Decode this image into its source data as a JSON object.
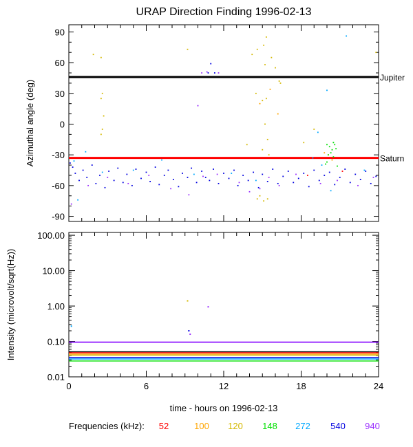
{
  "title": "URAP Direction Finding  1996-02-13",
  "xlabel": "time - hours on 1996-02-13",
  "legend_label": "Frequencies (kHz):",
  "frequencies": [
    {
      "label": "52",
      "color": "#ff0000"
    },
    {
      "label": "100",
      "color": "#ffa500"
    },
    {
      "label": "120",
      "color": "#d4b800"
    },
    {
      "label": "148",
      "color": "#00e000"
    },
    {
      "label": "272",
      "color": "#00a8ff"
    },
    {
      "label": "540",
      "color": "#0000e0"
    },
    {
      "label": "940",
      "color": "#9b30ff"
    }
  ],
  "chart_data": [
    {
      "type": "scatter",
      "title": "URAP Direction Finding  1996-02-13",
      "ylabel": "Azimuthal angle (deg)",
      "xlim": [
        0,
        24
      ],
      "ylim": [
        -95,
        97
      ],
      "yticks": [
        "90",
        "60",
        "30",
        "0",
        "-30",
        "-60",
        "-90"
      ],
      "xticks": [
        "0",
        "6",
        "12",
        "18",
        "24"
      ],
      "reference_lines": [
        {
          "label": "Jupiter",
          "y": 46,
          "color": "#000000"
        },
        {
          "label": "Saturn",
          "y": -33,
          "color": "#ff0000"
        }
      ],
      "series": [
        {
          "color": "#0000e0",
          "points": [
            [
              0.1,
              -38
            ],
            [
              0.3,
              -42
            ],
            [
              0.5,
              -48
            ],
            [
              0.8,
              -55
            ],
            [
              1.1,
              -45
            ],
            [
              1.4,
              -52
            ],
            [
              1.8,
              -40
            ],
            [
              2.1,
              -58
            ],
            [
              2.4,
              -50
            ],
            [
              2.8,
              -62
            ],
            [
              3.1,
              -46
            ],
            [
              3.5,
              -55
            ],
            [
              3.8,
              -43
            ],
            [
              4.2,
              -57
            ],
            [
              4.5,
              -49
            ],
            [
              4.9,
              -60
            ],
            [
              5.2,
              -44
            ],
            [
              5.6,
              -53
            ],
            [
              6.0,
              -47
            ],
            [
              6.3,
              -56
            ],
            [
              6.7,
              -42
            ],
            [
              7.0,
              -59
            ],
            [
              7.4,
              -50
            ],
            [
              7.7,
              -45
            ],
            [
              8.1,
              -54
            ],
            [
              8.5,
              -61
            ],
            [
              8.8,
              -48
            ],
            [
              9.2,
              -52
            ],
            [
              9.5,
              -43
            ],
            [
              9.9,
              -57
            ],
            [
              10.3,
              -46
            ],
            [
              10.6,
              -52
            ],
            [
              10.9,
              -55
            ],
            [
              11.2,
              -44
            ],
            [
              11.6,
              -58
            ],
            [
              12.0,
              -48
            ],
            [
              12.4,
              -53
            ],
            [
              12.8,
              -45
            ],
            [
              13.1,
              -60
            ],
            [
              13.5,
              -50
            ],
            [
              13.9,
              -55
            ],
            [
              14.3,
              -47
            ],
            [
              14.7,
              -62
            ],
            [
              15.0,
              -49
            ],
            [
              15.4,
              -56
            ],
            [
              15.8,
              -44
            ],
            [
              16.2,
              -58
            ],
            [
              16.6,
              -51
            ],
            [
              17.0,
              -46
            ],
            [
              17.4,
              -57
            ],
            [
              17.8,
              -53
            ],
            [
              18.2,
              -48
            ],
            [
              18.6,
              -61
            ],
            [
              19.0,
              -45
            ],
            [
              19.4,
              -55
            ],
            [
              19.8,
              -50
            ],
            [
              20.2,
              -47
            ],
            [
              20.6,
              -59
            ],
            [
              21.0,
              -52
            ],
            [
              21.4,
              -44
            ],
            [
              21.8,
              -57
            ],
            [
              22.2,
              -49
            ],
            [
              22.6,
              -54
            ],
            [
              23.0,
              -46
            ],
            [
              23.4,
              -58
            ],
            [
              23.8,
              -51
            ],
            [
              11.0,
              59
            ],
            [
              10.8,
              50
            ],
            [
              11.3,
              50
            ]
          ]
        },
        {
          "color": "#9b30ff",
          "points": [
            [
              0.2,
              -78
            ],
            [
              1.5,
              -60
            ],
            [
              3.0,
              -52
            ],
            [
              4.6,
              -58
            ],
            [
              6.2,
              -50
            ],
            [
              7.9,
              -63
            ],
            [
              9.3,
              -69
            ],
            [
              10.4,
              -51
            ],
            [
              11.5,
              -49
            ],
            [
              13.2,
              -57
            ],
            [
              14.0,
              -66
            ],
            [
              14.8,
              -63
            ],
            [
              15.5,
              -52
            ],
            [
              16.3,
              -60
            ],
            [
              17.6,
              -49
            ],
            [
              19.5,
              -58
            ],
            [
              20.8,
              -55
            ],
            [
              22.4,
              -60
            ],
            [
              23.6,
              -52
            ],
            [
              10.3,
              50
            ],
            [
              10.7,
              51
            ],
            [
              11.6,
              50
            ],
            [
              10.0,
              18
            ]
          ]
        },
        {
          "color": "#00a8ff",
          "points": [
            [
              0.4,
              -36
            ],
            [
              0.7,
              -74
            ],
            [
              1.3,
              -27
            ],
            [
              2.6,
              -47
            ],
            [
              5.0,
              -45
            ],
            [
              7.2,
              -35
            ],
            [
              9.7,
              -49
            ],
            [
              12.6,
              -48
            ],
            [
              14.5,
              -55
            ],
            [
              18.9,
              -33
            ],
            [
              19.3,
              -8
            ],
            [
              19.6,
              -40
            ],
            [
              20.0,
              33
            ],
            [
              20.3,
              -65
            ],
            [
              21.5,
              86
            ],
            [
              22.9,
              -45
            ]
          ]
        },
        {
          "color": "#d4b800",
          "points": [
            [
              1.9,
              68
            ],
            [
              2.5,
              65
            ],
            [
              2.6,
              30
            ],
            [
              2.5,
              25
            ],
            [
              2.7,
              8
            ],
            [
              2.6,
              -5
            ],
            [
              2.5,
              -10
            ],
            [
              9.2,
              73
            ],
            [
              14.2,
              68
            ],
            [
              14.6,
              73
            ],
            [
              15.3,
              85
            ],
            [
              15.1,
              77
            ],
            [
              15.7,
              65
            ],
            [
              15.2,
              58
            ],
            [
              16.0,
              55
            ],
            [
              16.3,
              42
            ],
            [
              16.4,
              40
            ],
            [
              14.5,
              30
            ],
            [
              15.0,
              23
            ],
            [
              15.3,
              25
            ],
            [
              15.0,
              -25
            ],
            [
              15.2,
              0
            ],
            [
              15.4,
              -15
            ],
            [
              15.5,
              -30
            ],
            [
              14.8,
              -70
            ],
            [
              15.1,
              -75
            ],
            [
              15.4,
              -73
            ],
            [
              14.6,
              -73
            ],
            [
              23.8,
              70
            ],
            [
              13.8,
              -20
            ],
            [
              19.0,
              -5
            ],
            [
              18.2,
              -18
            ]
          ]
        },
        {
          "color": "#ffa500",
          "points": [
            [
              14.8,
              20
            ],
            [
              15.6,
              34
            ],
            [
              16.2,
              10
            ],
            [
              19.8,
              -28
            ],
            [
              20.1,
              -30
            ],
            [
              20.4,
              -35
            ]
          ]
        },
        {
          "color": "#00e000",
          "points": [
            [
              20.0,
              -20
            ],
            [
              20.2,
              -22
            ],
            [
              20.4,
              -25
            ],
            [
              20.1,
              -30
            ],
            [
              20.3,
              -28
            ],
            [
              20.5,
              -32
            ],
            [
              20.0,
              -37
            ],
            [
              19.9,
              -39
            ],
            [
              20.6,
              -20
            ],
            [
              20.5,
              -18
            ],
            [
              20.8,
              -41
            ],
            [
              20.7,
              -24
            ]
          ]
        },
        {
          "color": "#ff0000",
          "points": [
            [
              18.5,
              -50
            ],
            [
              21.2,
              -46
            ]
          ]
        }
      ]
    },
    {
      "type": "line",
      "ylabel": "Intensity (microvolt/sqrt(Hz))",
      "yscale": "log",
      "xlim": [
        0,
        24
      ],
      "ylim": [
        0.01,
        120
      ],
      "yticks": [
        "100.00",
        "10.00",
        "1.00",
        "0.10",
        "0.01"
      ],
      "xticks": [
        "0",
        "6",
        "12",
        "18",
        "24"
      ],
      "series": [
        {
          "color": "#9b30ff",
          "values": [
            [
              0,
              0.095
            ],
            [
              24,
              0.095
            ]
          ]
        },
        {
          "color": "#000000",
          "values": [
            [
              0,
              0.051
            ],
            [
              24,
              0.051
            ]
          ]
        },
        {
          "color": "#ff0000",
          "values": [
            [
              0,
              0.048
            ],
            [
              24,
              0.048
            ]
          ]
        },
        {
          "color": "#ffa500",
          "values": [
            [
              0,
              0.044
            ],
            [
              24,
              0.044
            ]
          ]
        },
        {
          "color": "#d4b800",
          "values": [
            [
              0,
              0.041
            ],
            [
              24,
              0.041
            ]
          ]
        },
        {
          "color": "#0000e0",
          "values": [
            [
              0,
              0.035
            ],
            [
              24,
              0.035
            ]
          ]
        },
        {
          "color": "#00a8ff",
          "values": [
            [
              0,
              0.032
            ],
            [
              24,
              0.032
            ]
          ]
        },
        {
          "color": "#00e000",
          "values": [
            [
              0,
              0.028
            ],
            [
              24,
              0.028
            ]
          ]
        }
      ],
      "markers": [
        {
          "color": "#9b30ff",
          "x": 10.8,
          "y": 0.95
        },
        {
          "color": "#d4b800",
          "x": 9.2,
          "y": 1.4
        },
        {
          "color": "#0000e0",
          "x": 9.3,
          "y": 0.2
        },
        {
          "color": "#9b30ff",
          "x": 9.4,
          "y": 0.16
        },
        {
          "color": "#00a8ff",
          "x": 0.2,
          "y": 0.27
        }
      ]
    }
  ]
}
